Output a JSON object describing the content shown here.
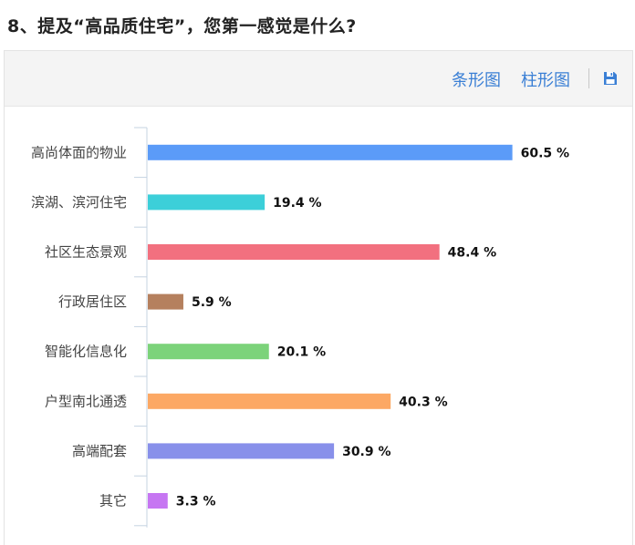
{
  "question": {
    "title": "8、提及“高品质住宅”，您第一感觉是什么?"
  },
  "toolbar": {
    "bar_label": "条形图",
    "column_label": "柱形图",
    "save_icon": "save-icon"
  },
  "colors": {
    "accent": "#3a7fd5",
    "axis": "#c5d3e2"
  },
  "chart_data": {
    "type": "bar",
    "orientation": "horizontal",
    "categories": [
      "高尚体面的物业",
      "滨湖、滨河住宅",
      "社区生态景观",
      "行政居住区",
      "智能化信息化",
      "户型南北通透",
      "高端配套",
      "其它"
    ],
    "values": [
      60.5,
      19.4,
      48.4,
      5.9,
      20.1,
      40.3,
      30.9,
      3.3
    ],
    "value_labels": [
      "60.5 %",
      "19.4 %",
      "48.4 %",
      "5.9 %",
      "20.1 %",
      "40.3 %",
      "30.9 %",
      "3.3 %"
    ],
    "colors": [
      "#5b9bf8",
      "#3ccfd9",
      "#f2707f",
      "#b5805e",
      "#7cd37a",
      "#fca864",
      "#8890ea",
      "#c676f2"
    ],
    "xlim": [
      0,
      100
    ],
    "grid": false,
    "legend": "none"
  }
}
